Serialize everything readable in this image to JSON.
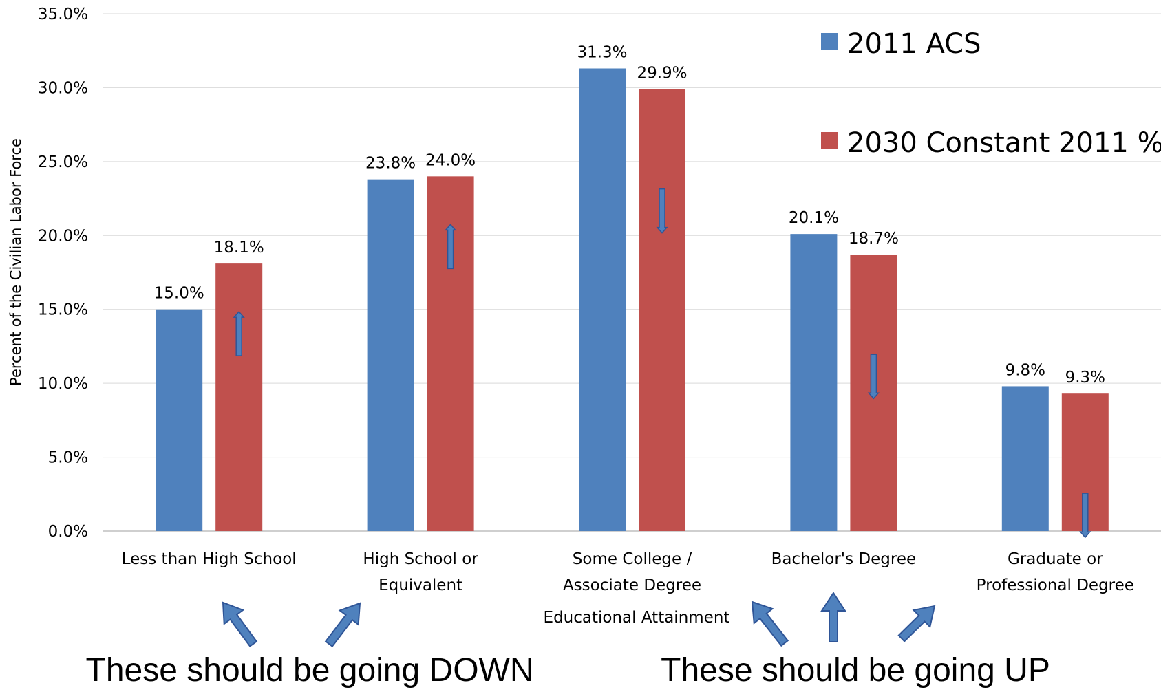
{
  "chart_data": {
    "type": "bar",
    "ylabel": "Percent of the Civilian Labor Force",
    "xlabel": "Educational Attainment",
    "ylim": [
      0,
      35
    ],
    "yticks": [
      "0.0%",
      "5.0%",
      "10.0%",
      "15.0%",
      "20.0%",
      "25.0%",
      "30.0%",
      "35.0%"
    ],
    "grid": true,
    "legend_position": "top-right",
    "categories": [
      [
        "Less than High School"
      ],
      [
        "High School or",
        "Equivalent"
      ],
      [
        "Some College /",
        "Associate Degree"
      ],
      [
        "Bachelor's Degree"
      ],
      [
        "Graduate or",
        "Professional Degree"
      ]
    ],
    "series": [
      {
        "name": "2011 ACS",
        "color": "#4f81bd",
        "values": [
          15.0,
          23.8,
          31.3,
          20.1,
          9.8
        ],
        "labels": [
          "15.0%",
          "23.8%",
          "31.3%",
          "20.1%",
          "9.8%"
        ]
      },
      {
        "name": "2030 Constant 2011 %",
        "color": "#c0504d",
        "values": [
          18.1,
          24.0,
          29.9,
          18.7,
          9.3
        ],
        "labels": [
          "18.1%",
          "24.0%",
          "29.9%",
          "18.7%",
          "9.3%"
        ]
      }
    ],
    "trend_arrows": [
      "up",
      "up",
      "down",
      "down",
      "down"
    ]
  },
  "annotations": {
    "left_note": "These should be going DOWN",
    "right_note": "These should be going UP",
    "arrow_color": "#4f81bd"
  }
}
